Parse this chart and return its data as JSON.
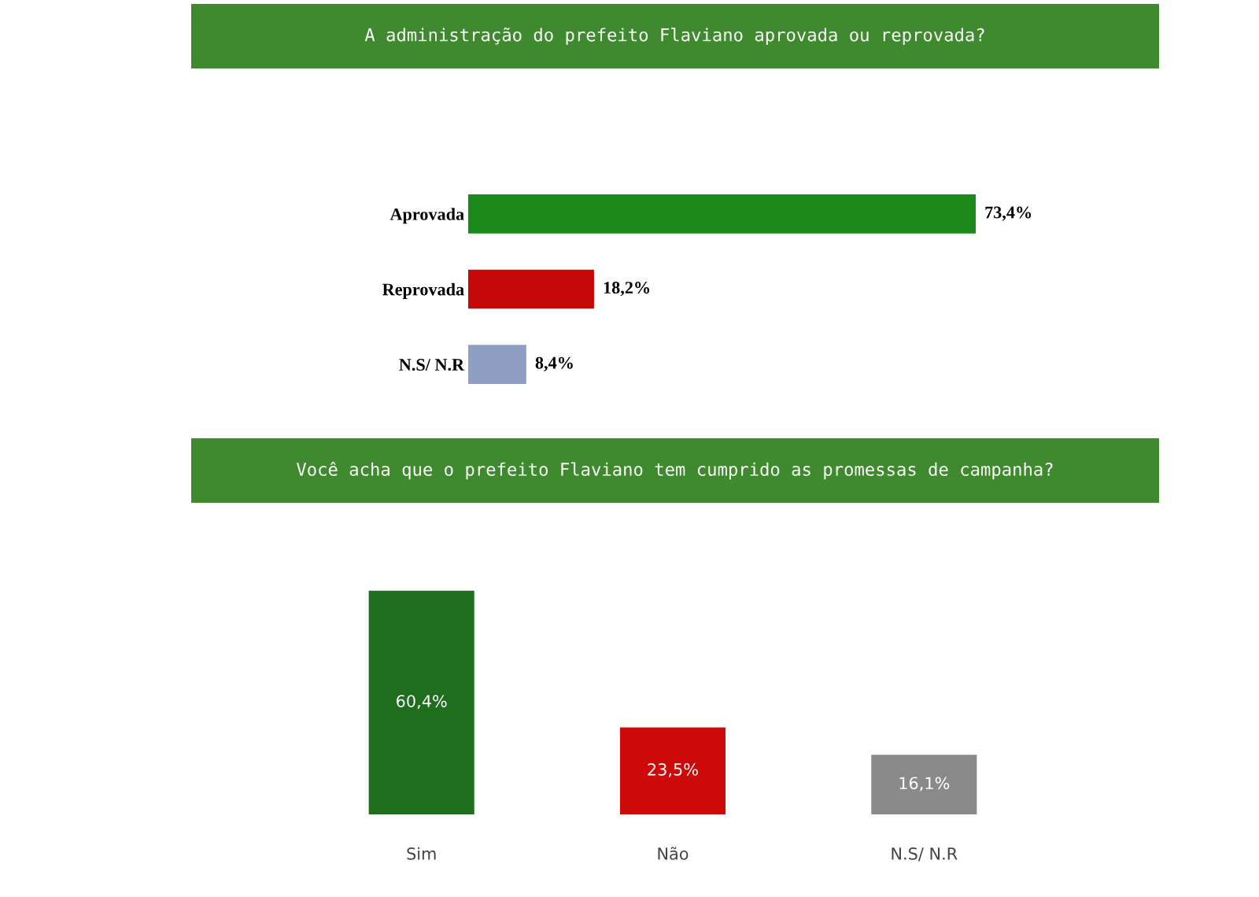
{
  "chart_data": [
    {
      "type": "bar",
      "orientation": "horizontal",
      "title": "A administração do prefeito Flaviano aprovada ou reprovada?",
      "categories": [
        "Aprovada",
        "Reprovada",
        "N.S/ N.R"
      ],
      "values": [
        73.4,
        18.2,
        8.4
      ],
      "value_labels": [
        "73,4%",
        "18,2%",
        "8,4%"
      ],
      "colors": [
        "#1b8a1b",
        "#c40808",
        "#8f9fc4"
      ],
      "tick_labels": "y",
      "grid": false,
      "legend": false
    },
    {
      "type": "bar",
      "title": "Você acha que o prefeito Flaviano tem cumprido as promessas de campanha?",
      "categories": [
        "Sim",
        "Não",
        "N.S/ N.R"
      ],
      "values": [
        60.4,
        23.5,
        16.1
      ],
      "value_labels": [
        "60,4%",
        "23,5%",
        "16,1%"
      ],
      "colors": [
        "#1e6e1e",
        "#cc0a0a",
        "#8a8a8a"
      ],
      "tick_labels": "x",
      "grid": false,
      "legend": false
    }
  ]
}
